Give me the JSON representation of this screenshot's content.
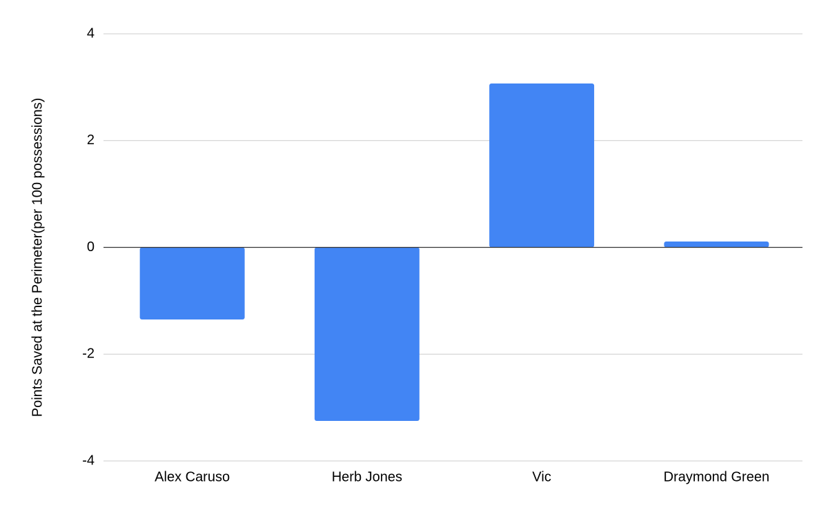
{
  "chart_data": {
    "type": "bar",
    "title": "",
    "xlabel": "",
    "ylabel": "Points Saved at the Perimeter(per 100 possessions)",
    "categories": [
      "Alex Caruso",
      "Herb Jones",
      "Vic",
      "Draymond Green"
    ],
    "values": [
      -1.35,
      -3.25,
      3.07,
      0.11
    ],
    "ylim": [
      -4,
      4
    ],
    "yticks": [
      -4,
      -2,
      0,
      2,
      4
    ],
    "grid": true,
    "legend": "none",
    "bar_color": "#4285f4"
  }
}
